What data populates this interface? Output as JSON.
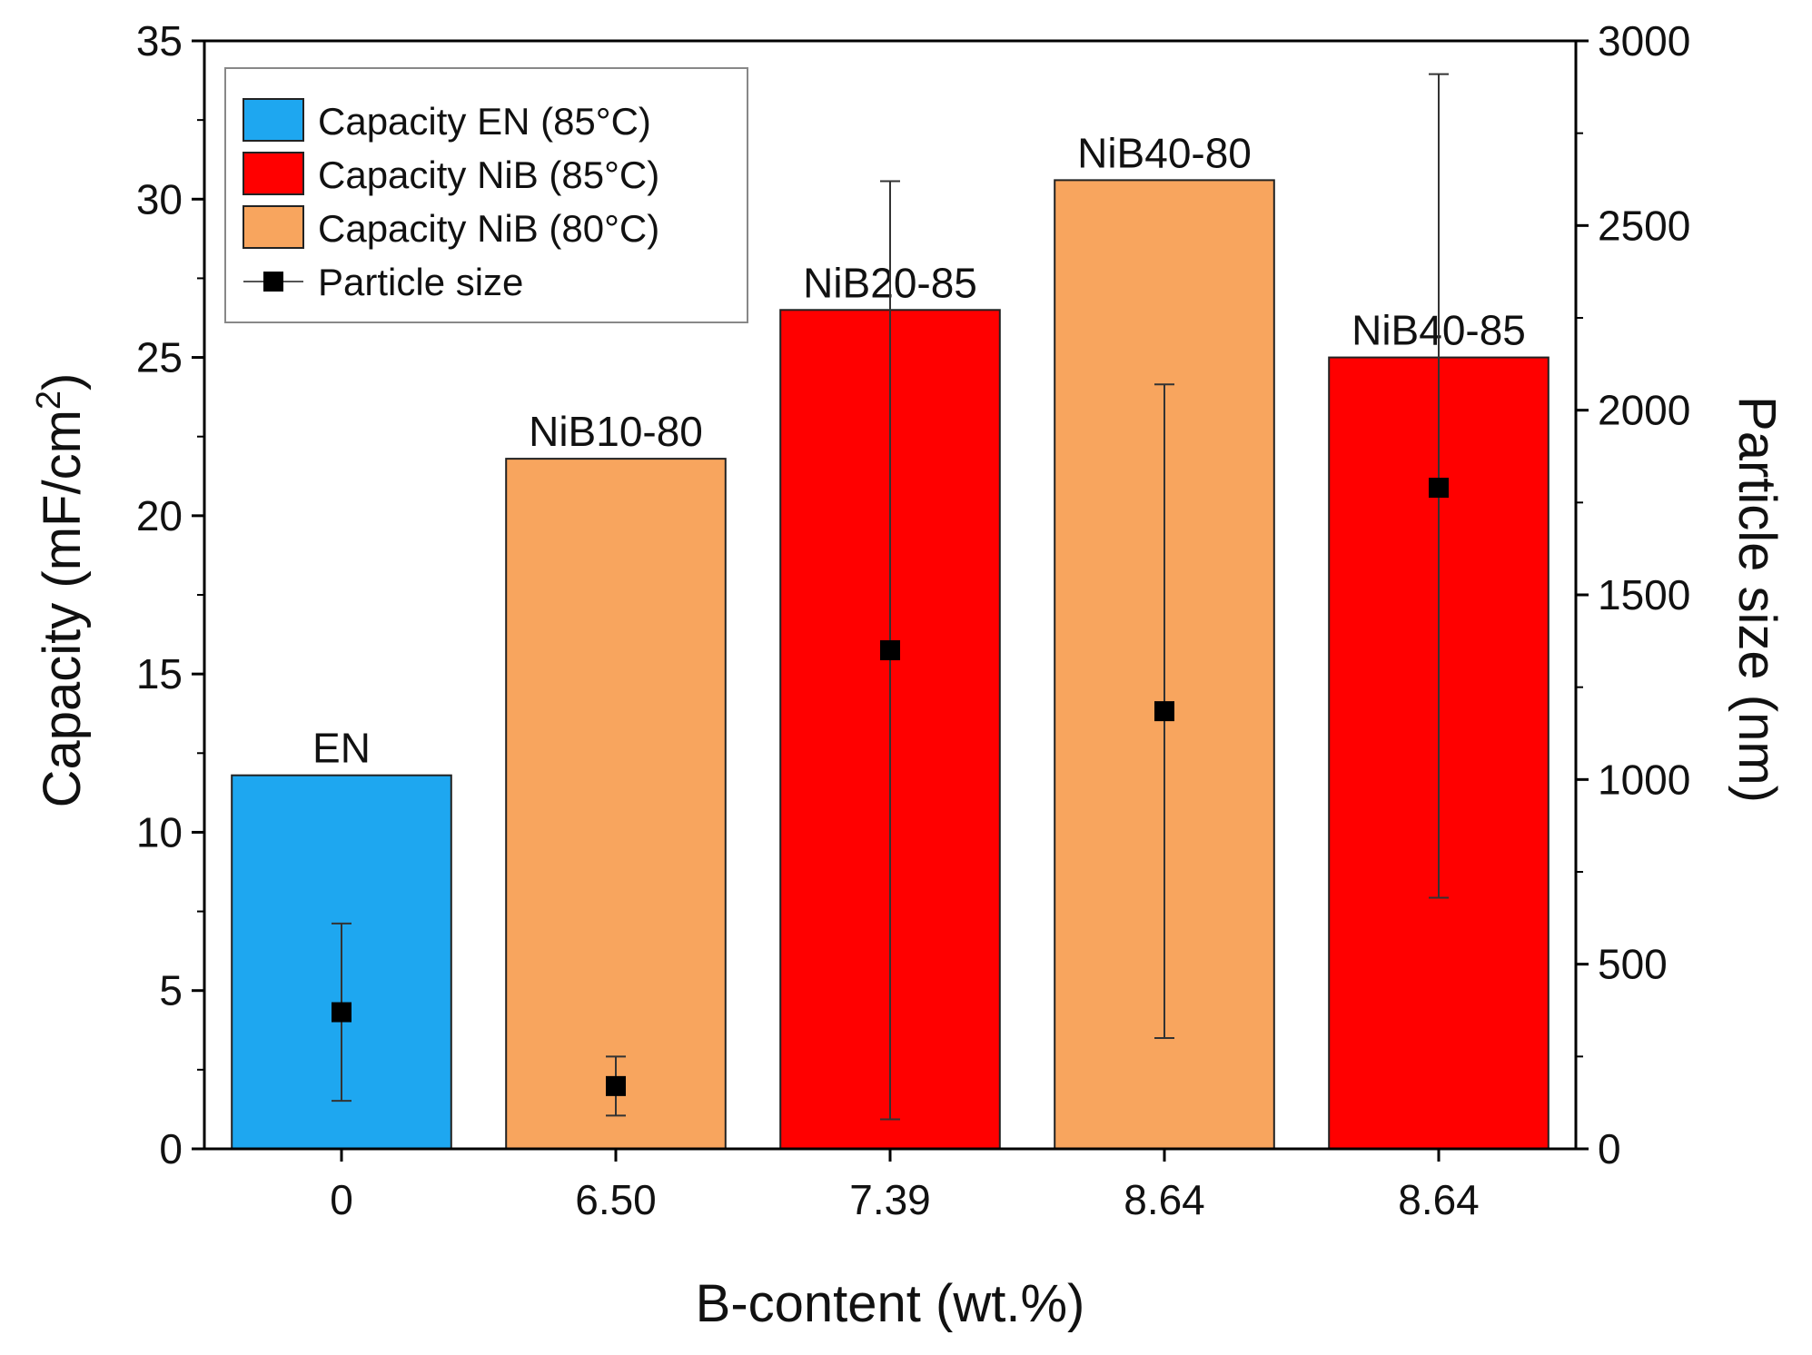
{
  "chart_data": {
    "type": "bar",
    "categories": [
      "0",
      "6.50",
      "7.39",
      "8.64",
      "8.64"
    ],
    "bar_labels": [
      "EN",
      "NiB10-80",
      "NiB20-85",
      "NiB40-80",
      "NiB40-85"
    ],
    "bar_series": [
      "Capacity EN (85°C)",
      "Capacity NiB (80°C)",
      "Capacity NiB (85°C)",
      "Capacity NiB (80°C)",
      "Capacity NiB (85°C)"
    ],
    "capacity_values": [
      11.8,
      21.8,
      26.5,
      30.6,
      25.0
    ],
    "particle_size": {
      "name": "Particle size",
      "values": [
        370,
        170,
        1350,
        1185,
        1790
      ],
      "err_low": [
        130,
        90,
        80,
        300,
        680
      ],
      "err_high": [
        610,
        250,
        2620,
        2070,
        2910
      ]
    },
    "legend": [
      {
        "label": "Capacity EN (85°C)",
        "color": "#1ea7f0",
        "kind": "bar"
      },
      {
        "label": "Capacity NiB (85°C)",
        "color": "#ff0000",
        "kind": "bar"
      },
      {
        "label": "Capacity NiB (80°C)",
        "color": "#f8a55e",
        "kind": "bar"
      },
      {
        "label": "Particle size",
        "color": "#000000",
        "kind": "marker"
      }
    ],
    "colors": {
      "Capacity EN (85°C)": "#1ea7f0",
      "Capacity NiB (85°C)": "#ff0000",
      "Capacity NiB (80°C)": "#f8a55e"
    },
    "xlabel": "B-content (wt.%)",
    "ylabel_left": "Capacity (mF/cm",
    "ylabel_left_sup": "2",
    "ylabel_left_end": ")",
    "ylabel_right": "Particle size (nm)",
    "ylim_left": [
      0,
      35
    ],
    "ylim_right": [
      0,
      3000
    ],
    "yticks_left": [
      0,
      5,
      10,
      15,
      20,
      25,
      30,
      35
    ],
    "yticks_right": [
      0,
      500,
      1000,
      1500,
      2000,
      2500,
      3000
    ],
    "legend_position": "top-left",
    "grid": false
  }
}
